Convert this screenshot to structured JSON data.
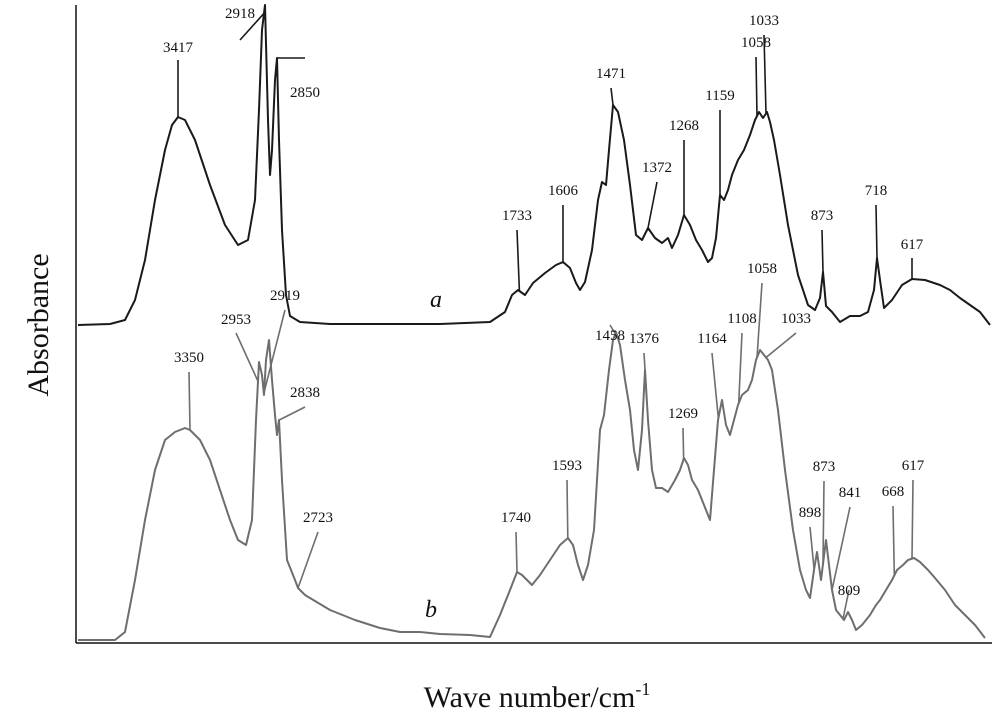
{
  "chart_data": {
    "type": "line",
    "title": "",
    "xlabel": "Wave number/cm",
    "xlabel_superscript": "-1",
    "ylabel": "Absorbance",
    "x_reversed": true,
    "grid": false,
    "series": [
      {
        "name": "a",
        "color": "#1a1a1a",
        "peaks": [
          3417,
          2918,
          2850,
          1733,
          1606,
          1471,
          1372,
          1268,
          1159,
          1058,
          1033,
          873,
          718,
          617
        ]
      },
      {
        "name": "b",
        "color": "#6e6e6e",
        "peaks": [
          3350,
          2953,
          2919,
          2838,
          2723,
          1740,
          1593,
          1458,
          1376,
          1269,
          1164,
          1108,
          1058,
          1033,
          898,
          873,
          841,
          809,
          668,
          617
        ]
      }
    ]
  }
}
